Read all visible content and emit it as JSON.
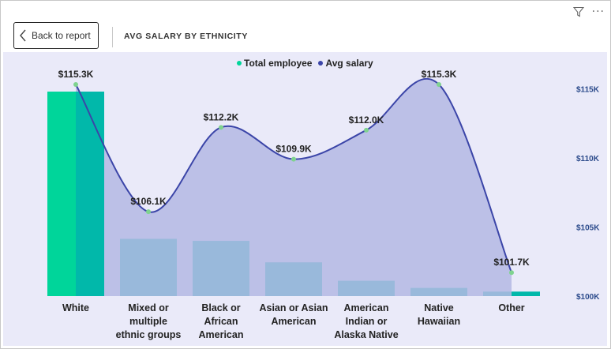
{
  "header": {
    "back_label": "Back to report",
    "title": "AVG SALARY BY ETHNICITY"
  },
  "icons": {
    "filter": "filter-icon",
    "more": "more-options-icon",
    "back": "chevron-left-icon"
  },
  "colors": {
    "bar": "#01B8AA",
    "bar_highlight": "#00D59A",
    "line": "#3B45A8",
    "area": "#B4B8E4",
    "marker": "#7FD38F",
    "background": "#EAEAF9"
  },
  "chart_data": {
    "type": "bar",
    "title": "AVG SALARY BY ETHNICITY",
    "categories": [
      "White",
      "Mixed or multiple ethnic groups",
      "Black or African American",
      "Asian or Asian American",
      "American Indian or Alaska Native",
      "Native Hawaiian",
      "Other"
    ],
    "category_lines": [
      [
        "White"
      ],
      [
        "Mixed or",
        "multiple",
        "ethnic groups"
      ],
      [
        "Black or",
        "African",
        "American"
      ],
      [
        "Asian or Asian",
        "American"
      ],
      [
        "American",
        "Indian or",
        "Alaska Native"
      ],
      [
        "Native",
        "Hawaiian"
      ],
      [
        "Other"
      ]
    ],
    "series": [
      {
        "name": "Total employee",
        "type": "bar",
        "values": [
          1000,
          280,
          270,
          165,
          75,
          40,
          22
        ]
      },
      {
        "name": "Avg salary",
        "type": "area-line",
        "axis": "right",
        "values": [
          115300,
          106100,
          112200,
          109900,
          112000,
          115300,
          101700
        ],
        "labels": [
          "$115.3K",
          "$106.1K",
          "$112.2K",
          "$109.9K",
          "$112.0K",
          "$115.3K",
          "$101.7K"
        ]
      }
    ],
    "y2_ticks": [
      {
        "value": 115000,
        "label": "$115K"
      },
      {
        "value": 110000,
        "label": "$110K"
      },
      {
        "value": 105000,
        "label": "$105K"
      },
      {
        "value": 100000,
        "label": "$100K"
      }
    ],
    "y2lim": [
      100000,
      116500
    ],
    "ylim": [
      0,
      1000
    ],
    "legend_position": "top-center",
    "grid": false
  }
}
